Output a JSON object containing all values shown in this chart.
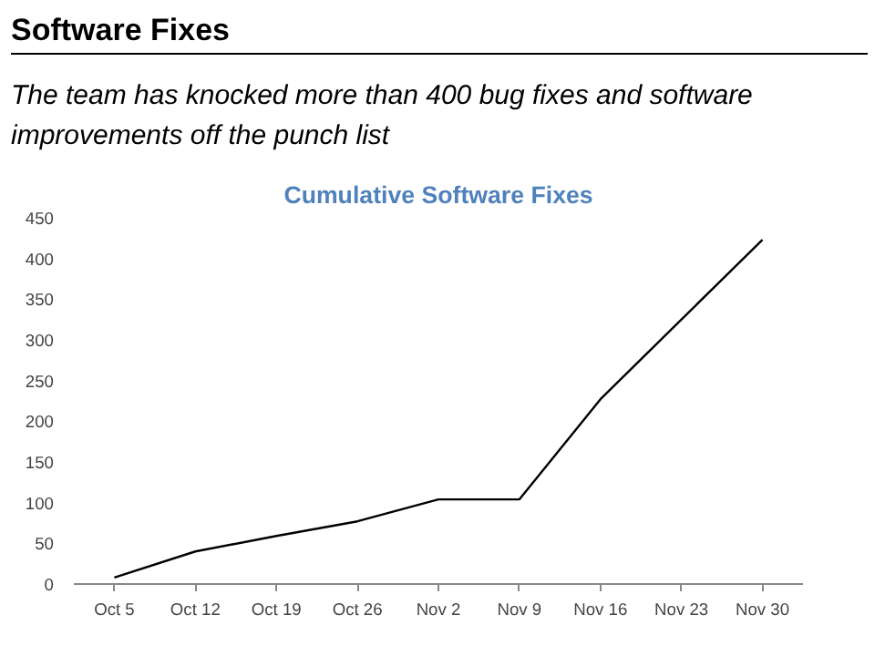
{
  "chart_data": {
    "type": "line",
    "title": "Software Fixes",
    "subtitle": "The team has knocked more than 400 bug fixes and software improvements off the punch list",
    "annotations": [
      "Cumulative Software Fixes"
    ],
    "categories": [
      "Oct 5",
      "Oct 12",
      "Oct 19",
      "Oct 26",
      "Nov 2",
      "Nov 9",
      "Nov 16",
      "Nov 23",
      "Nov 30"
    ],
    "series": [
      {
        "color": "#000000",
        "values": [
          8,
          40,
          59,
          77,
          104,
          104,
          227,
          325,
          423
        ]
      }
    ],
    "ylim": [
      0,
      450
    ],
    "yticks": [
      0,
      50,
      100,
      150,
      200,
      250,
      300,
      350,
      400,
      450
    ],
    "grid": false,
    "marker": "none",
    "line_style": "solid"
  }
}
